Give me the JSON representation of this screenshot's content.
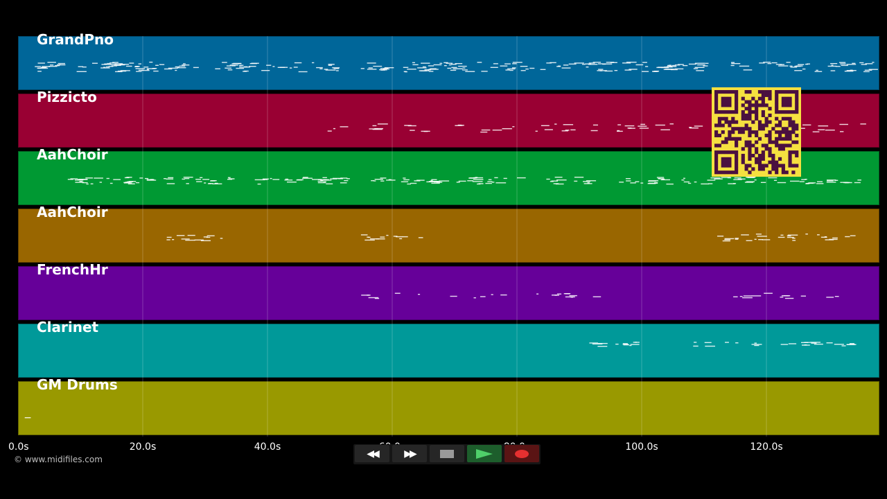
{
  "tracks": [
    {
      "name": "GrandPno",
      "color": "#006699"
    },
    {
      "name": "Pizzicto",
      "color": "#990033"
    },
    {
      "name": "AahChoir",
      "color": "#009933"
    },
    {
      "name": "AahChoir",
      "color": "#996600"
    },
    {
      "name": "FrenchHr",
      "color": "#660099"
    },
    {
      "name": "Clarinet",
      "color": "#009999"
    },
    {
      "name": "GM Drums",
      "color": "#999900"
    }
  ],
  "timeline": {
    "ticks": [
      "0.0s",
      "20.0s",
      "40.0s",
      "60.0s",
      "80.0s",
      "100.0s",
      "120.0s"
    ]
  },
  "copyright": "© www.midifiles.com",
  "transport": {
    "rewind_icon": "rewind-icon",
    "forward_icon": "fast-forward-icon",
    "stop_icon": "stop-icon",
    "play_icon": "play-icon",
    "record_icon": "record-icon"
  },
  "qr_code": {
    "color": "#f5e040",
    "module_color": "#4a1040"
  }
}
